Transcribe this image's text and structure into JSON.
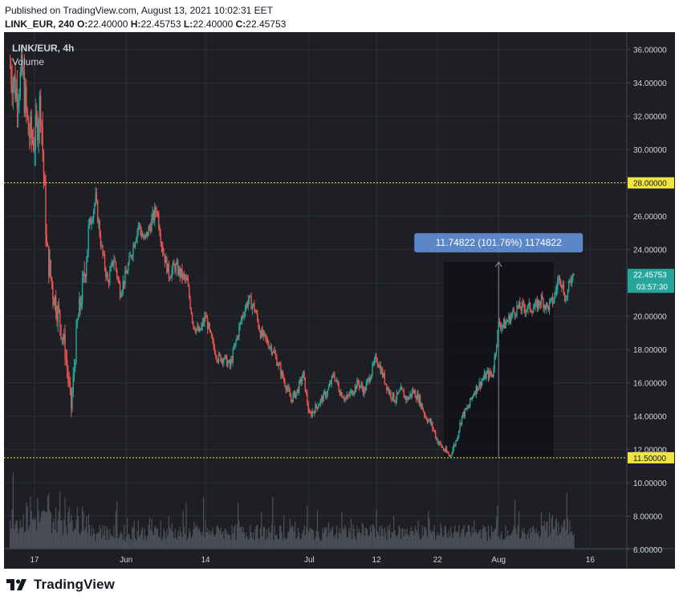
{
  "header": {
    "published": "Published on TradingView.com, August 13, 2021 10:02:31 EET",
    "symbol_interval": "LINK_EUR, 240",
    "o_label": "O:",
    "o_value": "22.40000",
    "h_label": "H:",
    "h_value": "22.45753",
    "l_label": "L:",
    "l_value": "22.40000",
    "c_label": "C:",
    "c_value": "22.45753"
  },
  "legend": {
    "symbol": "LINK/EUR, 4h",
    "volume": "Volume"
  },
  "footer": {
    "brand": "TradingView",
    "logo_icon": "tradingview-logo-icon"
  },
  "colors": {
    "background": "#1e1f24",
    "up": "#26a69a",
    "down": "#ef5350",
    "grid": "#2a2e39",
    "axis_text": "#d1d4dc",
    "volume": "#5d606b",
    "level_line": "#f0e442",
    "measure_box": "#111216",
    "measure_label_bg": "#5b86c8",
    "last_price_bg": "#26a69a"
  },
  "chart_data": {
    "type": "candlestick",
    "symbol": "LINK/EUR",
    "interval": "4h",
    "ylim": [
      6,
      37
    ],
    "y_ticks": [
      "36.00000",
      "34.00000",
      "32.00000",
      "30.00000",
      "28.00000",
      "26.00000",
      "24.00000",
      "22.00000",
      "20.00000",
      "18.00000",
      "16.00000",
      "14.00000",
      "12.00000",
      "10.00000",
      "8.00000",
      "6.00000"
    ],
    "x_ticks": [
      "17",
      "Jun",
      "14",
      "Jul",
      "12",
      "22",
      "Aug",
      "16"
    ],
    "x_tick_dates": [
      "2021-05-17",
      "2021-06-01",
      "2021-06-14",
      "2021-07-01",
      "2021-07-12",
      "2021-07-22",
      "2021-08-01",
      "2021-08-16"
    ],
    "x_range": [
      "2021-05-12",
      "2021-08-22"
    ],
    "last_data_date": "2021-08-13T08:00",
    "grid": true,
    "price_path_daily": [
      [
        "2021-05-13",
        35.0
      ],
      [
        "2021-05-14",
        33.5
      ],
      [
        "2021-05-15",
        34.5
      ],
      [
        "2021-05-16",
        31.0
      ],
      [
        "2021-05-17",
        30.5
      ],
      [
        "2021-05-18",
        33.0
      ],
      [
        "2021-05-19",
        24.0
      ],
      [
        "2021-05-20",
        21.5
      ],
      [
        "2021-05-21",
        20.0
      ],
      [
        "2021-05-22",
        18.0
      ],
      [
        "2021-05-23",
        14.5
      ],
      [
        "2021-05-24",
        19.5
      ],
      [
        "2021-05-25",
        22.0
      ],
      [
        "2021-05-26",
        25.5
      ],
      [
        "2021-05-27",
        27.0
      ],
      [
        "2021-05-28",
        24.0
      ],
      [
        "2021-05-29",
        22.0
      ],
      [
        "2021-05-30",
        23.5
      ],
      [
        "2021-05-31",
        21.5
      ],
      [
        "2021-06-01",
        22.5
      ],
      [
        "2021-06-02",
        24.0
      ],
      [
        "2021-06-03",
        25.5
      ],
      [
        "2021-06-04",
        24.5
      ],
      [
        "2021-06-05",
        25.5
      ],
      [
        "2021-06-06",
        26.5
      ],
      [
        "2021-06-07",
        24.0
      ],
      [
        "2021-06-08",
        22.5
      ],
      [
        "2021-06-09",
        23.0
      ],
      [
        "2021-06-10",
        22.5
      ],
      [
        "2021-06-11",
        22.0
      ],
      [
        "2021-06-12",
        19.5
      ],
      [
        "2021-06-13",
        19.0
      ],
      [
        "2021-06-14",
        20.0
      ],
      [
        "2021-06-15",
        18.5
      ],
      [
        "2021-06-16",
        17.5
      ],
      [
        "2021-06-17",
        17.5
      ],
      [
        "2021-06-18",
        17.0
      ],
      [
        "2021-06-19",
        18.5
      ],
      [
        "2021-06-20",
        20.0
      ],
      [
        "2021-06-21",
        21.0
      ],
      [
        "2021-06-22",
        20.5
      ],
      [
        "2021-06-23",
        19.0
      ],
      [
        "2021-06-24",
        18.5
      ],
      [
        "2021-06-25",
        18.0
      ],
      [
        "2021-06-26",
        17.0
      ],
      [
        "2021-06-27",
        16.0
      ],
      [
        "2021-06-28",
        15.0
      ],
      [
        "2021-06-29",
        15.5
      ],
      [
        "2021-06-30",
        16.5
      ],
      [
        "2021-07-01",
        14.0
      ],
      [
        "2021-07-02",
        14.5
      ],
      [
        "2021-07-03",
        15.0
      ],
      [
        "2021-07-04",
        15.5
      ],
      [
        "2021-07-05",
        16.5
      ],
      [
        "2021-07-06",
        15.5
      ],
      [
        "2021-07-07",
        15.0
      ],
      [
        "2021-07-08",
        15.5
      ],
      [
        "2021-07-09",
        16.0
      ],
      [
        "2021-07-10",
        15.5
      ],
      [
        "2021-07-11",
        16.5
      ],
      [
        "2021-07-12",
        17.5
      ],
      [
        "2021-07-13",
        16.5
      ],
      [
        "2021-07-14",
        15.5
      ],
      [
        "2021-07-15",
        15.0
      ],
      [
        "2021-07-16",
        15.5
      ],
      [
        "2021-07-17",
        15.0
      ],
      [
        "2021-07-18",
        15.5
      ],
      [
        "2021-07-19",
        15.0
      ],
      [
        "2021-07-20",
        14.0
      ],
      [
        "2021-07-21",
        13.5
      ],
      [
        "2021-07-22",
        12.5
      ],
      [
        "2021-07-23",
        12.0
      ],
      [
        "2021-07-24",
        11.6
      ],
      [
        "2021-07-25",
        12.5
      ],
      [
        "2021-07-26",
        14.0
      ],
      [
        "2021-07-27",
        14.5
      ],
      [
        "2021-07-28",
        15.5
      ],
      [
        "2021-07-29",
        16.0
      ],
      [
        "2021-07-30",
        16.5
      ],
      [
        "2021-07-31",
        16.5
      ],
      [
        "2021-08-01",
        19.5
      ],
      [
        "2021-08-02",
        19.5
      ],
      [
        "2021-08-03",
        20.0
      ],
      [
        "2021-08-04",
        20.5
      ],
      [
        "2021-08-05",
        20.5
      ],
      [
        "2021-08-06",
        20.5
      ],
      [
        "2021-08-07",
        20.5
      ],
      [
        "2021-08-08",
        21.0
      ],
      [
        "2021-08-09",
        20.5
      ],
      [
        "2021-08-10",
        21.0
      ],
      [
        "2021-08-11",
        22.5
      ],
      [
        "2021-08-12",
        21.0
      ],
      [
        "2021-08-13",
        22.45753
      ]
    ],
    "horizontal_levels": [
      {
        "value": 28.0,
        "label": "28.00000"
      },
      {
        "value": 11.5,
        "label": "11.50000"
      }
    ],
    "last_price": {
      "value": 22.45753,
      "label": "22.45753",
      "countdown": "03:57:30"
    },
    "measure": {
      "start_date": "2021-07-23",
      "end_date": "2021-08-10",
      "low": 11.5,
      "high": 23.25,
      "label": "11.74822 (101.76%) 1174822"
    }
  }
}
